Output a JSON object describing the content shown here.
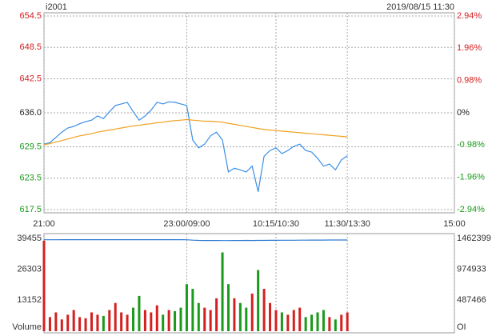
{
  "chart_data": [
    {
      "type": "line",
      "title": "i2001",
      "subtitle": "2019/08/15 11:30",
      "x": [
        0,
        5,
        10,
        15,
        20,
        25,
        30,
        35,
        40,
        45,
        50,
        55,
        60,
        65,
        70,
        75,
        80,
        85,
        90,
        95,
        100,
        105,
        110,
        115,
        120,
        125,
        130,
        135,
        140,
        145,
        150,
        155,
        160,
        165,
        170,
        175,
        180,
        185,
        190,
        195,
        200,
        205,
        210,
        215,
        220,
        225,
        230,
        235,
        240,
        245,
        250,
        255
      ],
      "xlim": [
        0,
        345
      ],
      "xticks": [
        {
          "value": 0,
          "label": "21:00"
        },
        {
          "value": 120,
          "label": "23:00/09:00"
        },
        {
          "value": 195,
          "label": "10:15/10:30"
        },
        {
          "value": 255,
          "label": "11:30/13:30"
        },
        {
          "value": 345,
          "label": "15:00"
        }
      ],
      "ylim": [
        617.5,
        654.5
      ],
      "yticks": [
        654.5,
        648.5,
        642.5,
        {
          "value": 636,
          "label": "636.0"
        },
        629.5,
        623.5,
        617.5
      ],
      "y2lim": [
        -2.94,
        2.94
      ],
      "y2ticks": [
        {
          "value": 2.94,
          "label": "2.94%"
        },
        {
          "value": 1.96,
          "label": "1.96%"
        },
        {
          "value": 0.98,
          "label": "0.98%"
        },
        {
          "value": 0,
          "label": "0%"
        },
        {
          "value": -0.98,
          "label": "-0.98%"
        },
        {
          "value": -1.96,
          "label": "-1.96%"
        },
        {
          "value": -2.94,
          "label": "-2.94%"
        }
      ],
      "grid": true,
      "up_color": "#d42020",
      "down_color": "#1a9a1a",
      "series": [
        {
          "color": "#3a8ee6",
          "values": [
            630.0,
            630.3,
            631.3,
            632.3,
            633.1,
            633.4,
            633.9,
            634.3,
            634.6,
            635.4,
            634.9,
            636.2,
            637.4,
            637.7,
            638.0,
            636.2,
            634.6,
            635.4,
            636.5,
            638.0,
            637.7,
            638.1,
            638.0,
            637.7,
            637.4,
            630.8,
            629.3,
            630.0,
            631.6,
            632.3,
            630.8,
            624.7,
            625.4,
            625.1,
            624.7,
            625.8,
            620.9,
            627.7,
            628.8,
            629.3,
            628.2,
            628.8,
            629.6,
            630.0,
            628.8,
            628.5,
            627.3,
            625.8,
            626.2,
            625.1,
            627.0,
            627.8
          ]
        },
        {
          "color": "#f0a020",
          "values": [
            629.9,
            630.1,
            630.4,
            630.7,
            631.0,
            631.3,
            631.6,
            631.8,
            632.0,
            632.3,
            632.5,
            632.7,
            632.9,
            633.1,
            633.3,
            633.5,
            633.6,
            633.8,
            633.9,
            634.1,
            634.2,
            634.4,
            634.5,
            634.6,
            634.7,
            634.6,
            634.5,
            634.4,
            634.4,
            634.3,
            634.2,
            634.0,
            633.8,
            633.6,
            633.4,
            633.2,
            633.0,
            632.8,
            632.7,
            632.6,
            632.5,
            632.4,
            632.3,
            632.2,
            632.1,
            632.0,
            631.9,
            631.8,
            631.7,
            631.6,
            631.5,
            631.4
          ]
        }
      ]
    },
    {
      "type": "bar",
      "y_label": "Volume",
      "y2_label": "OI",
      "x": [
        0,
        5,
        10,
        15,
        20,
        25,
        30,
        35,
        40,
        45,
        50,
        55,
        60,
        65,
        70,
        75,
        80,
        85,
        90,
        95,
        100,
        105,
        110,
        115,
        120,
        125,
        130,
        135,
        140,
        145,
        150,
        155,
        160,
        165,
        170,
        175,
        180,
        185,
        190,
        195,
        200,
        205,
        210,
        215,
        220,
        225,
        230,
        235,
        240,
        245,
        250,
        255
      ],
      "xlim": [
        0,
        345
      ],
      "values": [
        38500,
        6000,
        8000,
        5000,
        7000,
        9000,
        6000,
        5500,
        8000,
        7000,
        6500,
        9000,
        12000,
        8000,
        7000,
        10000,
        15000,
        9000,
        8000,
        11000,
        7000,
        9000,
        8500,
        10000,
        20000,
        18000,
        12000,
        10000,
        9000,
        14000,
        33500,
        20000,
        14000,
        12000,
        10000,
        16000,
        26000,
        18000,
        12000,
        9000,
        8000,
        7000,
        9000,
        10000,
        6000,
        7000,
        8000,
        9000,
        6000,
        5000,
        7000,
        8000
      ],
      "ylim": [
        0,
        39455
      ],
      "yticks": [
        13152,
        26303,
        39455
      ],
      "y2lim": [
        0,
        1462399
      ],
      "y2ticks": [
        487466,
        974933,
        1462399
      ],
      "series": [
        {
          "axis": "y2",
          "color": "#2a7ad0",
          "values": [
            1441000,
            1441500,
            1441200,
            1441800,
            1442000,
            1441600,
            1441900,
            1442200,
            1442000,
            1441800,
            1442100,
            1442300,
            1442000,
            1441700,
            1441900,
            1442100,
            1442300,
            1442000,
            1441800,
            1442000,
            1442200,
            1442400,
            1442100,
            1441900,
            1440500,
            1435000,
            1431000,
            1430000,
            1429500,
            1429000,
            1428000,
            1428500,
            1429000,
            1430000,
            1430500,
            1430000,
            1431000,
            1431500,
            1432000,
            1432500,
            1433000,
            1433500,
            1434000,
            1434500,
            1435000,
            1435500,
            1436000,
            1436300,
            1436600,
            1437000,
            1437300,
            1437500
          ]
        }
      ]
    }
  ]
}
